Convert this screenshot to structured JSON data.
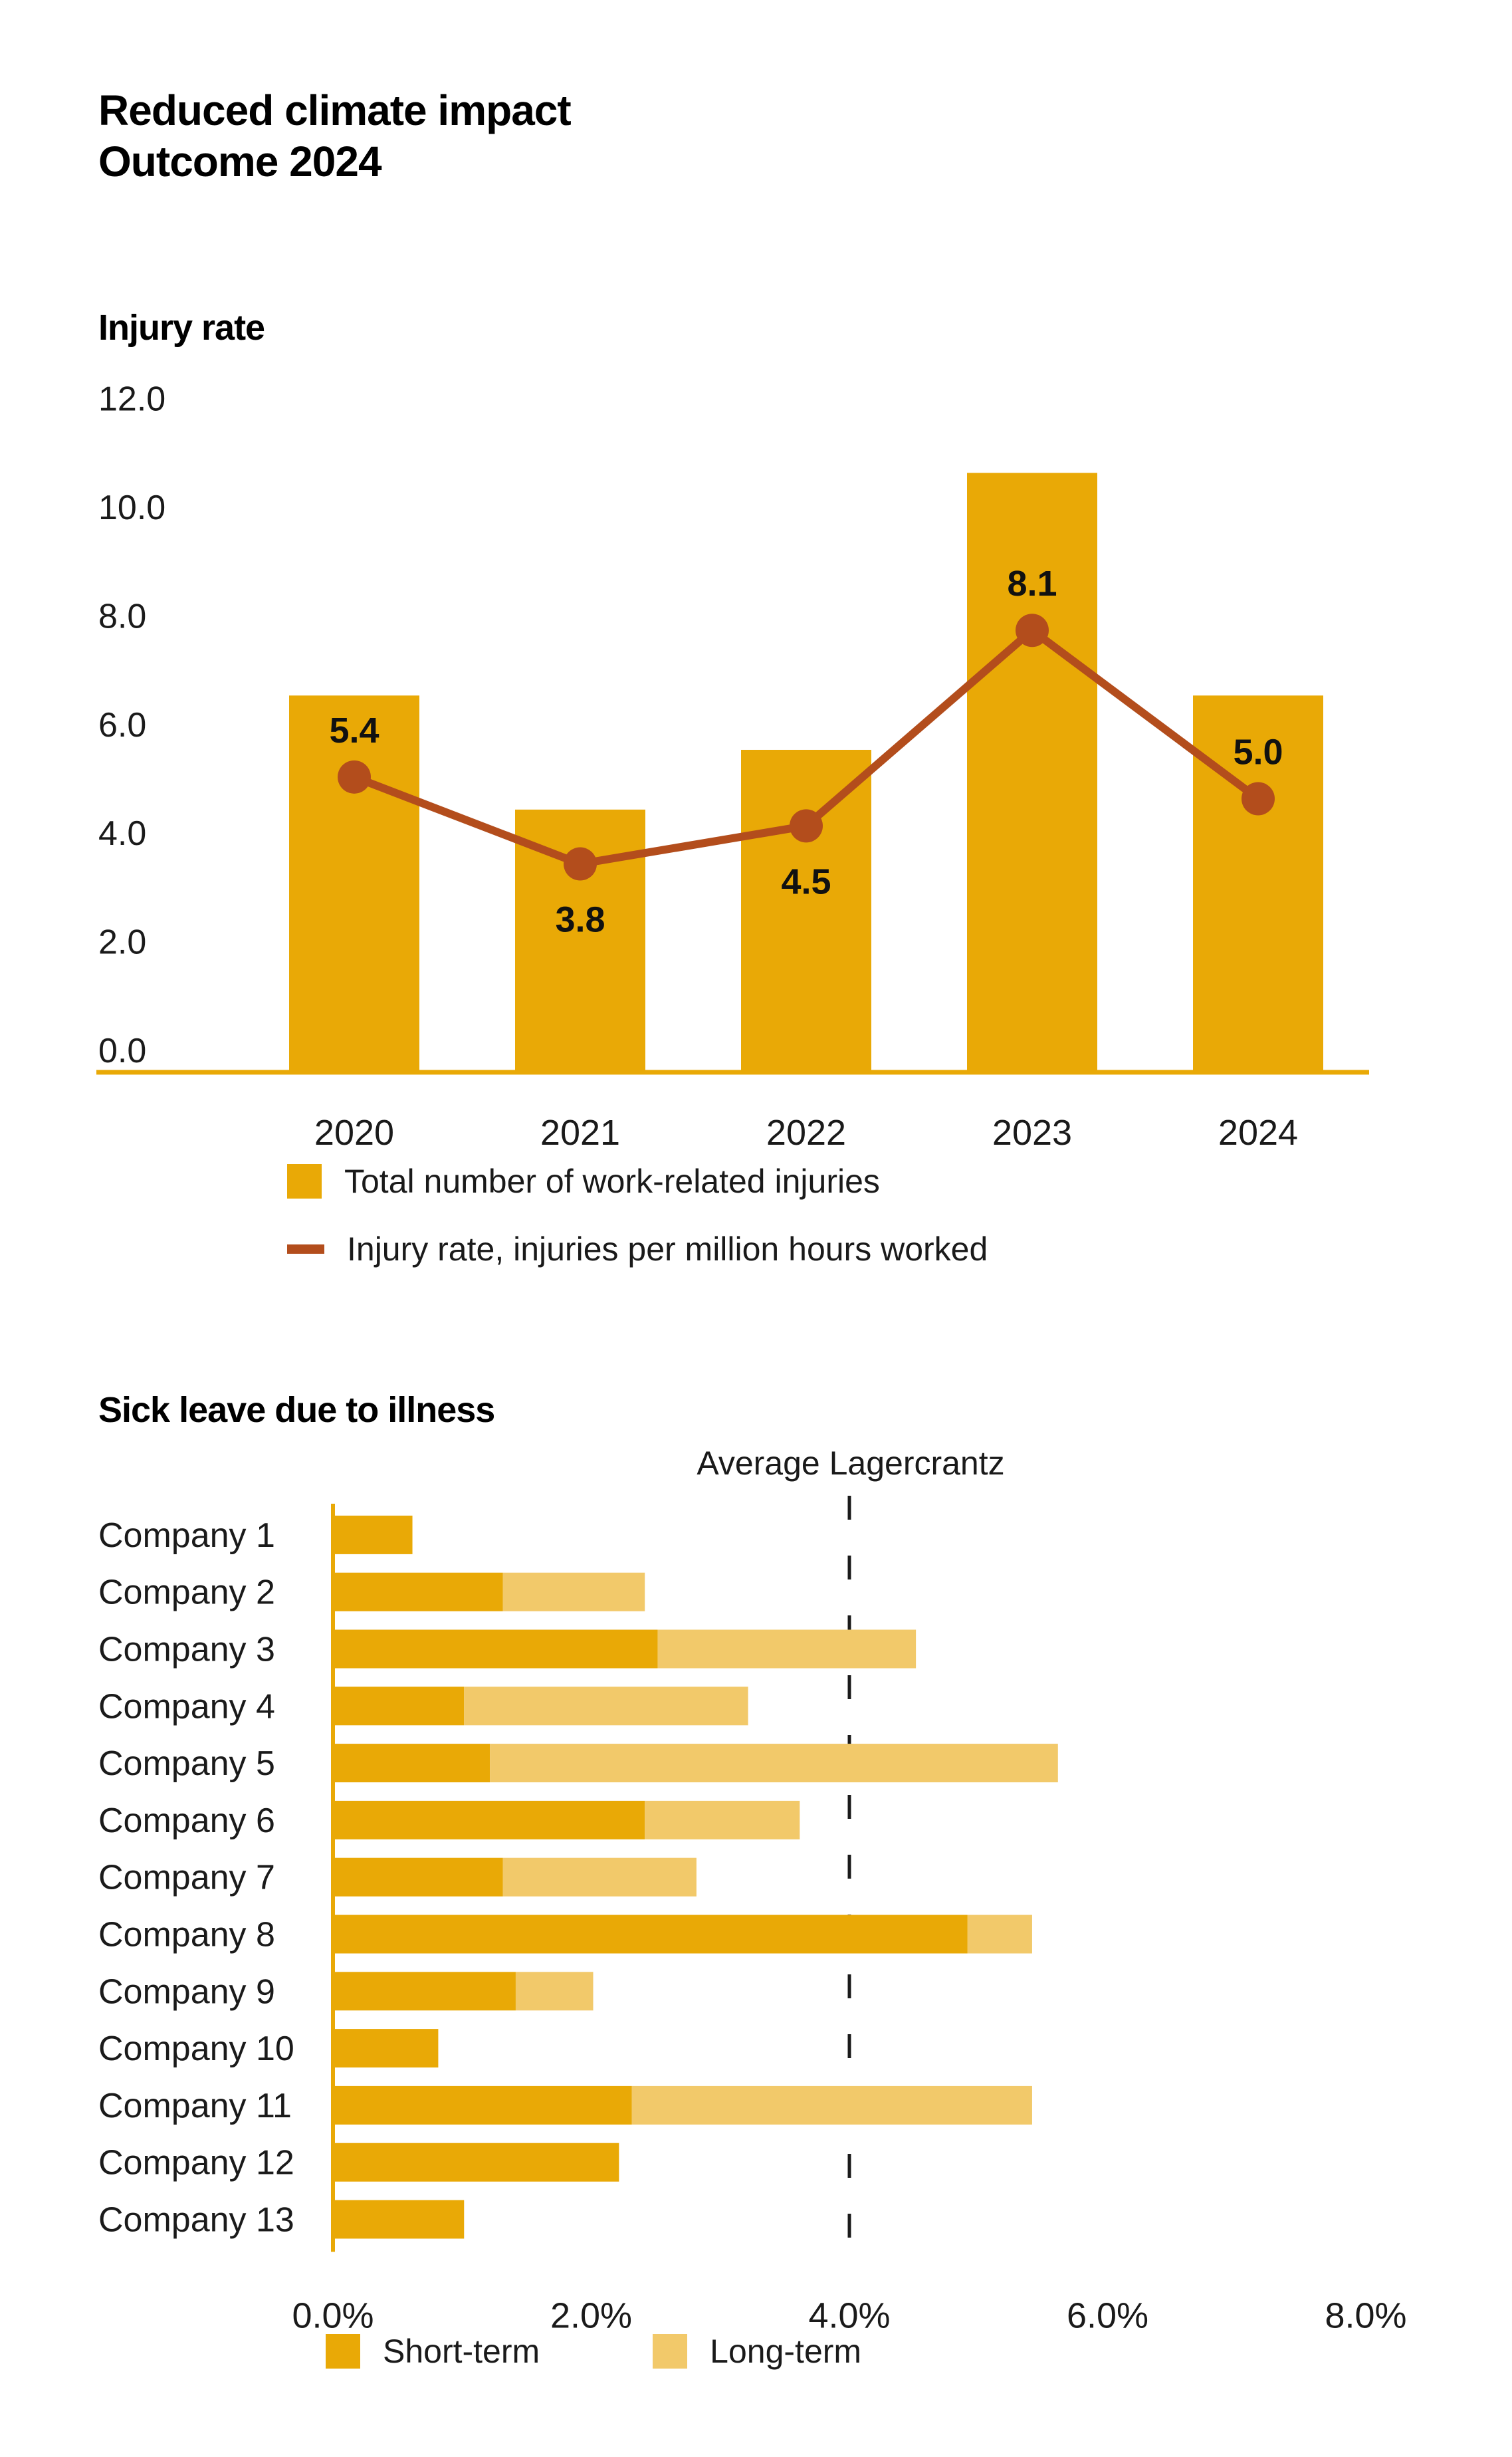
{
  "page": {
    "title_line1": "Reduced climate impact",
    "title_line2": "Outcome 2024"
  },
  "colors": {
    "bar_orange": "#E9A906",
    "light_orange": "#F2C96A",
    "line_brown": "#B34D1C",
    "text_dark": "#1A1A1A"
  },
  "chart_data": [
    {
      "type": "bar",
      "subtype": "bar-with-line-overlay",
      "title": "Injury rate",
      "categories": [
        "2020",
        "2021",
        "2022",
        "2023",
        "2024"
      ],
      "series": [
        {
          "name": "Total number of work-related injuries",
          "type": "bar",
          "color": "#E9A906",
          "values": [
            6.9,
            4.8,
            5.9,
            11.0,
            6.9
          ]
        },
        {
          "name": "Injury rate, injuries per million hours worked",
          "type": "line",
          "color": "#B34D1C",
          "values": [
            5.4,
            3.8,
            4.5,
            8.1,
            5.0
          ],
          "data_labels": [
            "5.4",
            "3.8",
            "4.5",
            "8.1",
            "5.0"
          ],
          "label_positions": [
            "above",
            "below",
            "below",
            "above",
            "above"
          ]
        }
      ],
      "y_axis": {
        "min": 0,
        "max": 12,
        "step": 2,
        "tick_labels": [
          "0.0",
          "2.0",
          "4.0",
          "6.0",
          "8.0",
          "10.0",
          "12.0"
        ]
      },
      "grid": false,
      "legend_position": "bottom-left"
    },
    {
      "type": "bar",
      "subtype": "horizontal-stacked",
      "title": "Sick leave due to illness",
      "annotation": {
        "label": "Average Lagercrantz",
        "value_pct": 4.0,
        "style": "dashed-vertical-line"
      },
      "categories": [
        "Company 1",
        "Company 2",
        "Company 3",
        "Company 4",
        "Company 5",
        "Company 6",
        "Company 7",
        "Company 8",
        "Company 9",
        "Company 10",
        "Company 11",
        "Company 12",
        "Company 13"
      ],
      "series": [
        {
          "name": "Short-term",
          "color": "#E9A906",
          "values": [
            0.6,
            1.3,
            2.5,
            1.0,
            1.2,
            2.4,
            1.3,
            4.9,
            1.4,
            0.8,
            2.3,
            2.2,
            1.0
          ]
        },
        {
          "name": "Long-term",
          "color": "#F2C96A",
          "values": [
            0.0,
            1.1,
            2.0,
            2.2,
            4.4,
            1.2,
            1.5,
            0.5,
            0.6,
            0.0,
            3.1,
            0.0,
            0.0
          ]
        }
      ],
      "x_axis": {
        "min": 0,
        "max": 8,
        "step": 2,
        "tick_labels": [
          "0.0%",
          "2.0%",
          "4.0%",
          "6.0%",
          "8.0%"
        ],
        "unit": "percent"
      },
      "grid": false,
      "legend_position": "bottom-left"
    }
  ]
}
